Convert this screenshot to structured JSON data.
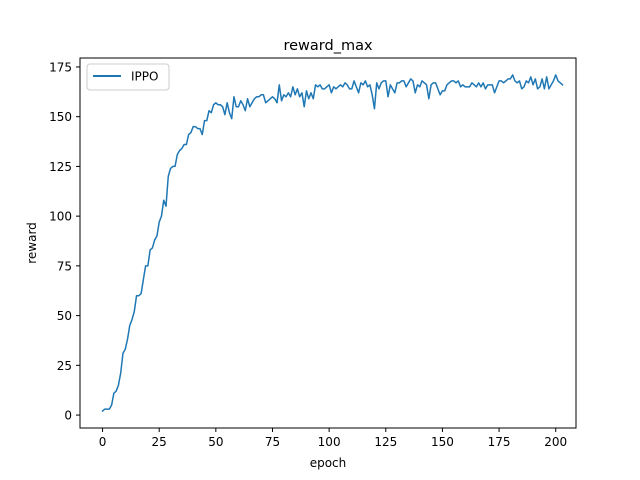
{
  "chart_data": {
    "type": "line",
    "title": "reward_max",
    "xlabel": "epoch",
    "ylabel": "reward",
    "xlim": [
      -9.95,
      208.95
    ],
    "ylim": [
      -6.5,
      179.5
    ],
    "xticks": [
      0,
      25,
      50,
      75,
      100,
      125,
      150,
      175,
      200
    ],
    "yticks": [
      0,
      25,
      50,
      75,
      100,
      125,
      150,
      175
    ],
    "grid": false,
    "legend_position": "top-left",
    "series": [
      {
        "name": "IPPO",
        "color": "#1f77b4",
        "values": [
          2,
          3,
          3,
          3,
          5,
          11,
          12,
          15,
          21,
          31,
          33,
          38,
          45,
          48,
          52,
          60,
          60,
          61,
          68,
          75,
          75,
          83,
          84,
          88,
          90,
          97,
          100,
          108,
          105,
          120,
          124,
          125,
          125,
          131,
          133,
          134,
          136,
          136,
          141,
          142,
          145,
          145,
          144,
          144,
          141,
          148,
          148,
          153,
          152,
          156,
          157,
          156,
          156,
          155,
          151,
          157,
          152,
          149,
          160,
          155,
          155,
          158,
          156,
          153,
          159,
          155,
          157,
          159,
          160,
          160,
          161,
          161,
          157,
          158,
          159,
          160,
          159,
          157,
          166,
          158,
          161,
          160,
          162,
          160,
          165,
          161,
          164,
          160,
          162,
          155,
          163,
          159,
          162,
          159,
          166,
          165,
          166,
          164,
          164,
          165,
          166,
          162,
          165,
          164,
          165,
          166,
          165,
          167,
          166,
          164,
          164,
          168,
          165,
          162,
          167,
          166,
          168,
          165,
          166,
          161,
          154,
          167,
          164,
          167,
          168,
          168,
          160,
          166,
          164,
          162,
          167,
          167,
          168,
          168,
          165,
          167,
          169,
          168,
          162,
          166,
          165,
          168,
          167,
          166,
          159,
          166,
          167,
          167,
          164,
          161,
          163,
          163,
          166,
          167,
          168,
          168,
          167,
          168,
          165,
          166,
          165,
          165,
          165,
          167,
          166,
          165,
          167,
          165,
          167,
          164,
          166,
          166,
          166,
          162,
          165,
          168,
          168,
          167,
          168,
          169,
          169,
          171,
          168,
          167,
          168,
          164,
          165,
          168,
          167,
          170,
          166,
          169,
          164,
          165,
          169,
          164,
          170,
          164,
          166,
          168,
          171,
          168,
          167,
          166
        ]
      }
    ]
  }
}
